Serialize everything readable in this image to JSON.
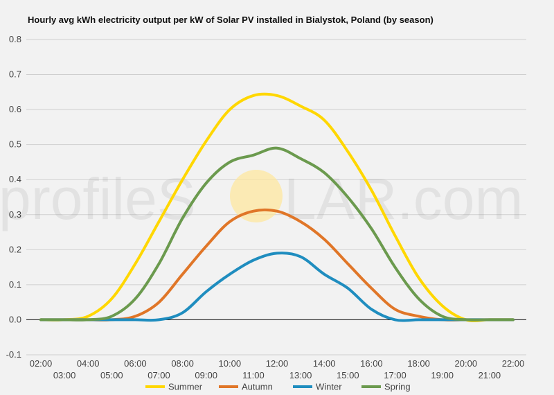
{
  "chart_data": {
    "type": "line",
    "title": "Hourly avg kWh electricity output per kW of Solar PV installed in Bialystok, Poland (by season)",
    "xlabel": "",
    "ylabel": "",
    "ylim": [
      -0.1,
      0.8
    ],
    "yticks": [
      "-0.1",
      "0.0",
      "0.1",
      "0.2",
      "0.3",
      "0.4",
      "0.5",
      "0.6",
      "0.7",
      "0.8"
    ],
    "x": [
      "02:00",
      "03:00",
      "04:00",
      "05:00",
      "06:00",
      "07:00",
      "08:00",
      "09:00",
      "10:00",
      "11:00",
      "12:00",
      "13:00",
      "14:00",
      "15:00",
      "16:00",
      "17:00",
      "18:00",
      "19:00",
      "20:00",
      "21:00",
      "22:00"
    ],
    "grid": true,
    "legend_position": "bottom",
    "series": [
      {
        "name": "Summer",
        "color": "#ffd700",
        "values": [
          0.0,
          0.0,
          0.01,
          0.06,
          0.16,
          0.28,
          0.4,
          0.51,
          0.6,
          0.64,
          0.64,
          0.61,
          0.57,
          0.48,
          0.37,
          0.24,
          0.12,
          0.04,
          0.0,
          0.0,
          0.0
        ]
      },
      {
        "name": "Autumn",
        "color": "#e07628",
        "values": [
          0.0,
          0.0,
          0.0,
          0.0,
          0.01,
          0.05,
          0.13,
          0.21,
          0.28,
          0.31,
          0.31,
          0.28,
          0.23,
          0.16,
          0.09,
          0.03,
          0.01,
          0.0,
          0.0,
          0.0,
          0.0
        ]
      },
      {
        "name": "Winter",
        "color": "#1f8dbf",
        "values": [
          0.0,
          0.0,
          0.0,
          0.0,
          0.0,
          0.0,
          0.02,
          0.08,
          0.13,
          0.17,
          0.19,
          0.18,
          0.13,
          0.09,
          0.03,
          0.0,
          0.0,
          0.0,
          0.0,
          0.0,
          0.0
        ]
      },
      {
        "name": "Spring",
        "color": "#6b9a4e",
        "values": [
          0.0,
          0.0,
          0.0,
          0.01,
          0.06,
          0.16,
          0.29,
          0.39,
          0.45,
          0.47,
          0.49,
          0.46,
          0.42,
          0.35,
          0.26,
          0.15,
          0.06,
          0.01,
          0.0,
          0.0,
          0.0
        ]
      }
    ]
  },
  "watermark": {
    "left": "profileS",
    "right": "LAR.com",
    "sun_color": "#ffe79a"
  }
}
